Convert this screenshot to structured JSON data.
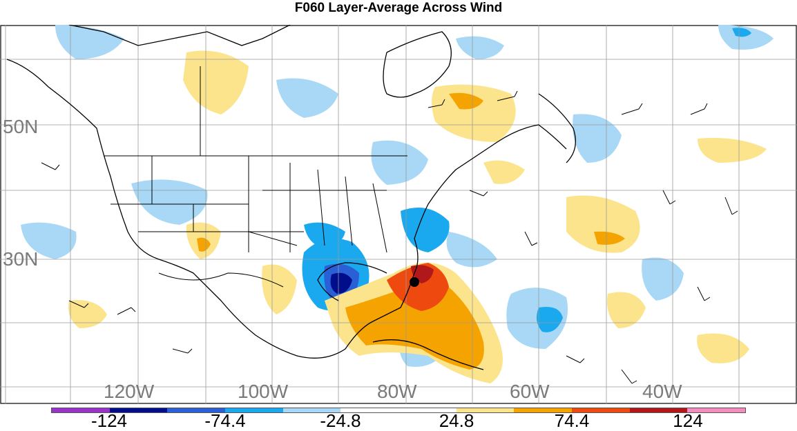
{
  "title": "F060 Layer-Average Across Wind",
  "lat_labels": [
    "50N",
    "30N"
  ],
  "lon_labels": [
    "120W",
    "100W",
    "80W",
    "60W",
    "40W"
  ],
  "colorbar": {
    "colors": [
      "#9933cc",
      "#000e8c",
      "#2b5fd6",
      "#1aa8ee",
      "#a8d8f5",
      "#ffffff",
      "#ffffff",
      "#fce48c",
      "#f5a300",
      "#ee4a10",
      "#b0181a",
      "#f58cbf"
    ],
    "labels": [
      "-124",
      "-74.4",
      "-24.8",
      "24.8",
      "74.4",
      "124"
    ]
  }
}
